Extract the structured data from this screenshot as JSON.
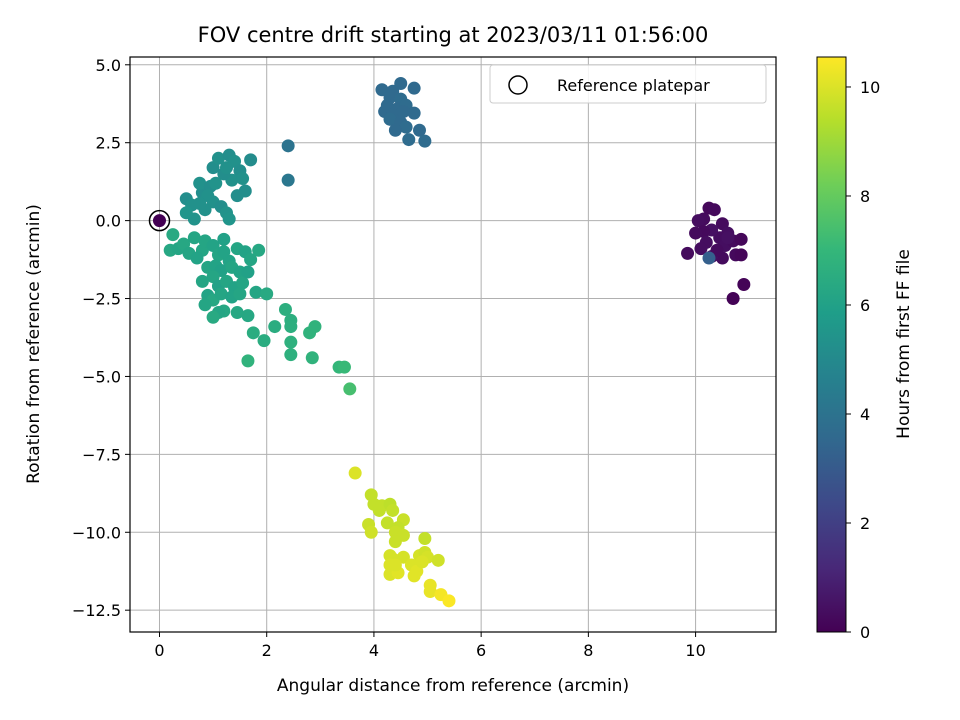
{
  "chart_data": {
    "type": "scatter",
    "title": "FOV centre drift starting at 2023/03/11 01:56:00",
    "xlabel": "Angular distance from reference (arcmin)",
    "ylabel": "Rotation from reference (arcmin)",
    "xlim": [
      -0.55,
      11.5
    ],
    "ylim": [
      -13.2,
      5.25
    ],
    "x_ticks": [
      0,
      2,
      4,
      6,
      8,
      10
    ],
    "y_ticks": [
      5.0,
      2.5,
      0.0,
      -2.5,
      -5.0,
      -7.5,
      -10.0,
      -12.5
    ],
    "y_tick_labels": [
      "5.0",
      "2.5",
      "0.0",
      "−2.5",
      "−5.0",
      "−7.5",
      "−10.0",
      "−12.5"
    ],
    "grid": true,
    "legend": {
      "position": "top-right",
      "entries": [
        "Reference platepar"
      ]
    },
    "reference_point": {
      "x": 0,
      "y": 0
    },
    "colorbar": {
      "label": "Hours from first FF file",
      "range": [
        0,
        10.55
      ],
      "ticks": [
        0,
        2,
        4,
        6,
        8,
        10
      ],
      "colormap": "viridis",
      "stops": [
        "#440154",
        "#482878",
        "#3e4989",
        "#31688e",
        "#26828e",
        "#1f9e89",
        "#35b779",
        "#6ece58",
        "#b5de2b",
        "#fde725"
      ]
    },
    "points": [
      [
        10.15,
        0.05,
        0.3
      ],
      [
        10.25,
        0.4,
        0.2
      ],
      [
        10.35,
        0.35,
        0.25
      ],
      [
        10.05,
        0.0,
        0.35
      ],
      [
        10.5,
        -0.1,
        0.3
      ],
      [
        10.6,
        -0.4,
        0.4
      ],
      [
        10.45,
        -0.55,
        0.35
      ],
      [
        10.3,
        -0.3,
        0.45
      ],
      [
        10.15,
        -0.35,
        0.25
      ],
      [
        10.0,
        -0.4,
        0.3
      ],
      [
        10.2,
        -0.7,
        0.35
      ],
      [
        10.55,
        -0.8,
        0.4
      ],
      [
        10.7,
        -0.65,
        0.3
      ],
      [
        10.85,
        -0.6,
        0.2
      ],
      [
        10.75,
        -1.1,
        0.25
      ],
      [
        10.85,
        -1.1,
        0.15
      ],
      [
        10.5,
        -1.2,
        0.3
      ],
      [
        10.3,
        -1.15,
        0.4
      ],
      [
        10.1,
        -0.9,
        0.35
      ],
      [
        10.4,
        -0.95,
        0.3
      ],
      [
        9.85,
        -1.05,
        0.3
      ],
      [
        10.9,
        -2.05,
        0.1
      ],
      [
        10.7,
        -2.5,
        0.05
      ],
      [
        10.25,
        -1.2,
        3.2
      ],
      [
        10.6,
        -0.55,
        0.45
      ],
      [
        4.15,
        4.2,
        3.6
      ],
      [
        4.35,
        4.15,
        3.6
      ],
      [
        4.5,
        4.4,
        3.6
      ],
      [
        4.75,
        4.25,
        3.6
      ],
      [
        4.3,
        3.95,
        3.6
      ],
      [
        4.5,
        3.9,
        3.7
      ],
      [
        4.25,
        3.7,
        3.6
      ],
      [
        4.45,
        3.6,
        3.6
      ],
      [
        4.6,
        3.7,
        3.7
      ],
      [
        4.2,
        3.5,
        3.6
      ],
      [
        4.35,
        3.4,
        3.6
      ],
      [
        4.55,
        3.5,
        3.6
      ],
      [
        4.75,
        3.45,
        3.6
      ],
      [
        4.3,
        3.25,
        3.7
      ],
      [
        4.5,
        3.15,
        3.6
      ],
      [
        4.6,
        3.0,
        3.7
      ],
      [
        4.4,
        2.9,
        3.6
      ],
      [
        4.65,
        2.6,
        3.7
      ],
      [
        4.85,
        2.9,
        3.6
      ],
      [
        4.95,
        2.55,
        3.7
      ],
      [
        2.4,
        2.4,
        4.0
      ],
      [
        2.4,
        1.3,
        4.2
      ],
      [
        0.5,
        0.7,
        5.2
      ],
      [
        0.6,
        0.5,
        5.3
      ],
      [
        0.8,
        0.9,
        5.2
      ],
      [
        0.75,
        1.2,
        5.3
      ],
      [
        0.95,
        1.1,
        5.2
      ],
      [
        1.0,
        1.7,
        5.2
      ],
      [
        1.1,
        2.0,
        5.3
      ],
      [
        1.3,
        2.1,
        5.2
      ],
      [
        1.4,
        1.9,
        5.3
      ],
      [
        1.5,
        1.6,
        5.2
      ],
      [
        1.7,
        1.95,
        5.1
      ],
      [
        1.6,
        0.95,
        5.2
      ],
      [
        1.35,
        1.3,
        5.3
      ],
      [
        1.2,
        1.5,
        5.2
      ],
      [
        1.05,
        1.2,
        5.4
      ],
      [
        0.9,
        0.8,
        5.3
      ],
      [
        1.0,
        0.6,
        5.3
      ],
      [
        1.15,
        0.45,
        5.2
      ],
      [
        1.25,
        0.25,
        5.4
      ],
      [
        0.85,
        0.35,
        5.3
      ],
      [
        0.65,
        0.05,
        5.4
      ],
      [
        0.5,
        0.25,
        5.5
      ],
      [
        0.75,
        0.55,
        5.3
      ],
      [
        1.3,
        0.05,
        5.5
      ],
      [
        1.45,
        0.8,
        5.2
      ],
      [
        1.55,
        1.35,
        5.3
      ],
      [
        1.25,
        1.7,
        5.3
      ],
      [
        0.25,
        -0.45,
        6.4
      ],
      [
        0.2,
        -0.95,
        6.3
      ],
      [
        0.35,
        -0.9,
        6.2
      ],
      [
        0.45,
        -0.75,
        6.3
      ],
      [
        0.55,
        -1.05,
        6.2
      ],
      [
        0.65,
        -0.55,
        6.2
      ],
      [
        0.8,
        -0.95,
        6.2
      ],
      [
        0.7,
        -1.2,
        6.1
      ],
      [
        0.85,
        -0.65,
        6.2
      ],
      [
        1.0,
        -0.8,
        6.1
      ],
      [
        1.1,
        -1.1,
        6.2
      ],
      [
        1.2,
        -0.6,
        6.0
      ],
      [
        1.3,
        -1.3,
        6.1
      ],
      [
        1.45,
        -0.9,
        6.2
      ],
      [
        1.6,
        -1.0,
        6.1
      ],
      [
        1.7,
        -1.25,
        6.2
      ],
      [
        1.85,
        -0.95,
        6.3
      ],
      [
        0.9,
        -1.5,
        6.2
      ],
      [
        1.05,
        -1.45,
        6.1
      ],
      [
        1.15,
        -1.6,
        6.0
      ],
      [
        1.35,
        -1.5,
        6.2
      ],
      [
        1.5,
        -1.65,
        6.1
      ],
      [
        1.0,
        -1.8,
        6.2
      ],
      [
        0.8,
        -1.95,
        6.2
      ],
      [
        1.1,
        -2.1,
        6.0
      ],
      [
        1.25,
        -1.95,
        6.2
      ],
      [
        1.4,
        -2.15,
        6.1
      ],
      [
        1.55,
        -2.0,
        6.2
      ],
      [
        1.65,
        -1.65,
        6.0
      ],
      [
        0.9,
        -2.4,
        6.1
      ],
      [
        1.0,
        -2.55,
        6.3
      ],
      [
        0.85,
        -2.7,
        6.2
      ],
      [
        1.15,
        -2.35,
        6.2
      ],
      [
        1.35,
        -2.45,
        6.1
      ],
      [
        1.5,
        -2.35,
        6.2
      ],
      [
        1.8,
        -2.3,
        6.2
      ],
      [
        2.0,
        -2.35,
        6.4
      ],
      [
        1.2,
        -2.9,
        6.3
      ],
      [
        1.1,
        -2.95,
        6.2
      ],
      [
        1.0,
        -3.1,
        6.4
      ],
      [
        1.45,
        -2.95,
        6.3
      ],
      [
        1.65,
        -3.05,
        6.3
      ],
      [
        1.75,
        -3.6,
        6.5
      ],
      [
        1.95,
        -3.85,
        6.5
      ],
      [
        2.15,
        -3.4,
        6.5
      ],
      [
        1.65,
        -4.5,
        6.8
      ],
      [
        2.35,
        -2.85,
        6.6
      ],
      [
        2.45,
        -3.2,
        6.6
      ],
      [
        2.45,
        -3.4,
        6.6
      ],
      [
        2.45,
        -3.9,
        6.7
      ],
      [
        2.45,
        -4.3,
        6.7
      ],
      [
        2.8,
        -3.6,
        6.8
      ],
      [
        2.9,
        -3.4,
        6.8
      ],
      [
        2.85,
        -4.4,
        6.8
      ],
      [
        3.35,
        -4.7,
        7.0
      ],
      [
        3.45,
        -4.7,
        7.1
      ],
      [
        3.55,
        -5.4,
        7.4
      ],
      [
        1.2,
        -1.0,
        6.1
      ],
      [
        3.65,
        -8.1,
        10.0
      ],
      [
        3.95,
        -8.8,
        9.6
      ],
      [
        4.0,
        -9.1,
        9.6
      ],
      [
        4.15,
        -9.15,
        9.6
      ],
      [
        4.1,
        -9.3,
        9.6
      ],
      [
        4.3,
        -9.1,
        9.5
      ],
      [
        4.35,
        -9.3,
        9.6
      ],
      [
        4.55,
        -9.6,
        9.7
      ],
      [
        4.25,
        -9.7,
        9.6
      ],
      [
        4.45,
        -9.85,
        9.6
      ],
      [
        3.9,
        -9.75,
        9.7
      ],
      [
        3.95,
        -10.0,
        9.8
      ],
      [
        4.4,
        -10.0,
        9.7
      ],
      [
        4.55,
        -10.1,
        9.7
      ],
      [
        4.4,
        -10.3,
        9.7
      ],
      [
        4.95,
        -10.2,
        9.6
      ],
      [
        4.3,
        -10.75,
        9.9
      ],
      [
        4.35,
        -10.85,
        9.9
      ],
      [
        4.55,
        -10.8,
        9.9
      ],
      [
        4.85,
        -10.75,
        9.9
      ],
      [
        4.95,
        -10.65,
        9.8
      ],
      [
        5.0,
        -10.8,
        9.9
      ],
      [
        5.2,
        -10.9,
        9.8
      ],
      [
        4.3,
        -11.05,
        10.0
      ],
      [
        4.3,
        -11.35,
        10.0
      ],
      [
        4.45,
        -11.3,
        10.1
      ],
      [
        4.4,
        -11.05,
        10.0
      ],
      [
        4.7,
        -11.05,
        10.0
      ],
      [
        4.8,
        -11.25,
        10.1
      ],
      [
        4.9,
        -10.95,
        10.0
      ],
      [
        4.75,
        -11.4,
        10.1
      ],
      [
        5.05,
        -11.7,
        10.2
      ],
      [
        5.05,
        -11.9,
        10.2
      ],
      [
        5.25,
        -12.0,
        10.4
      ],
      [
        5.4,
        -12.2,
        10.5
      ]
    ]
  }
}
